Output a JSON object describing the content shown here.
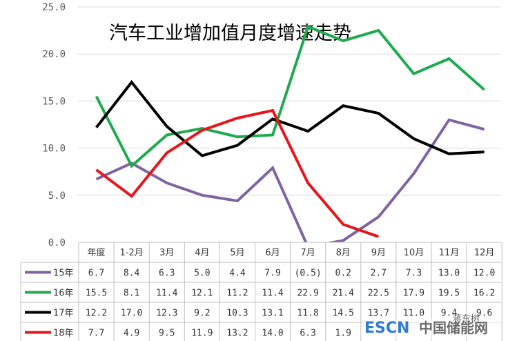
{
  "chart_data": {
    "type": "line",
    "title": "汽车工业增加值月度增速走势",
    "categories": [
      "年度",
      "1-2月",
      "3月",
      "4月",
      "5月",
      "6月",
      "7月",
      "8月",
      "9月",
      "10月",
      "11月",
      "12月"
    ],
    "ylim": [
      0,
      25
    ],
    "yticks": [
      "0.0",
      "5.0",
      "10.0",
      "15.0",
      "20.0",
      "25.0"
    ],
    "grid": true,
    "series": [
      {
        "name": "15年",
        "color": "#8064a2",
        "values": [
          6.7,
          8.4,
          6.3,
          5.0,
          4.4,
          7.9,
          -0.5,
          0.2,
          2.7,
          7.3,
          13.0,
          12.0
        ],
        "labels": [
          "6.7",
          "8.4",
          "6.3",
          "5.0",
          "4.4",
          "7.9",
          "(0.5)",
          "0.2",
          "2.7",
          "7.3",
          "13.0",
          "12.0"
        ]
      },
      {
        "name": "16年",
        "color": "#1faa4f",
        "values": [
          15.5,
          8.1,
          11.4,
          12.1,
          11.2,
          11.4,
          22.9,
          21.4,
          22.5,
          17.9,
          19.5,
          16.2
        ],
        "labels": [
          "15.5",
          "8.1",
          "11.4",
          "12.1",
          "11.2",
          "11.4",
          "22.9",
          "21.4",
          "22.5",
          "17.9",
          "19.5",
          "16.2"
        ]
      },
      {
        "name": "17年",
        "color": "#000000",
        "values": [
          12.2,
          17.0,
          12.3,
          9.2,
          10.3,
          13.1,
          11.8,
          14.5,
          13.7,
          11.0,
          9.4,
          9.6
        ],
        "labels": [
          "12.2",
          "17.0",
          "12.3",
          "9.2",
          "10.3",
          "13.1",
          "11.8",
          "14.5",
          "13.7",
          "11.0",
          "9.4",
          "9.6"
        ]
      },
      {
        "name": "18年",
        "color": "#e8141b",
        "values": [
          7.7,
          4.9,
          9.5,
          11.9,
          13.2,
          14.0,
          6.3,
          1.9,
          0.6,
          null,
          null,
          null
        ],
        "labels": [
          "7.7",
          "4.9",
          "9.5",
          "11.9",
          "13.2",
          "14.0",
          "6.3",
          "1.9",
          "",
          "",
          "",
          ""
        ]
      }
    ]
  },
  "watermark": {
    "brand": "ESCN",
    "cn_name": "中国储能网",
    "account": "蒋东树"
  }
}
